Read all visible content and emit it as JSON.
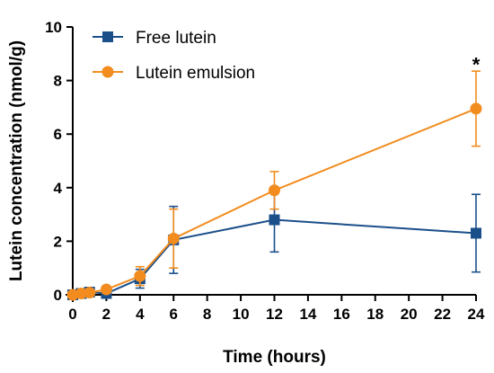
{
  "chart_data": {
    "type": "line",
    "title": "",
    "xlabel": "Time (hours)",
    "ylabel": "Lutein concentration (nmol/g)",
    "xlim": [
      0,
      24
    ],
    "ylim": [
      0,
      10
    ],
    "x_ticks": [
      0,
      2,
      4,
      6,
      8,
      10,
      12,
      14,
      16,
      18,
      20,
      22,
      24
    ],
    "y_ticks": [
      0,
      2,
      4,
      6,
      8,
      10
    ],
    "grid": false,
    "legend_position": "top-left",
    "series": [
      {
        "name": "Free lutein",
        "color": "#1b4f8a",
        "marker": "square",
        "x": [
          0,
          0.5,
          1,
          2,
          4,
          6,
          12,
          24
        ],
        "y": [
          0.0,
          0.05,
          0.1,
          0.05,
          0.6,
          2.05,
          2.8,
          2.3
        ],
        "error": [
          0.05,
          0.05,
          0.08,
          0.08,
          0.35,
          1.25,
          1.2,
          1.45
        ]
      },
      {
        "name": "Lutein emulsion",
        "color": "#f28c1e",
        "marker": "circle",
        "x": [
          0,
          0.5,
          1,
          2,
          4,
          6,
          12,
          24
        ],
        "y": [
          0.0,
          0.05,
          0.08,
          0.2,
          0.7,
          2.1,
          3.9,
          6.95
        ],
        "error": [
          0.05,
          0.06,
          0.08,
          0.1,
          0.35,
          1.1,
          0.7,
          1.4
        ]
      }
    ],
    "annotations": [
      {
        "text": "*",
        "x": 24,
        "y": 8.6
      }
    ]
  }
}
